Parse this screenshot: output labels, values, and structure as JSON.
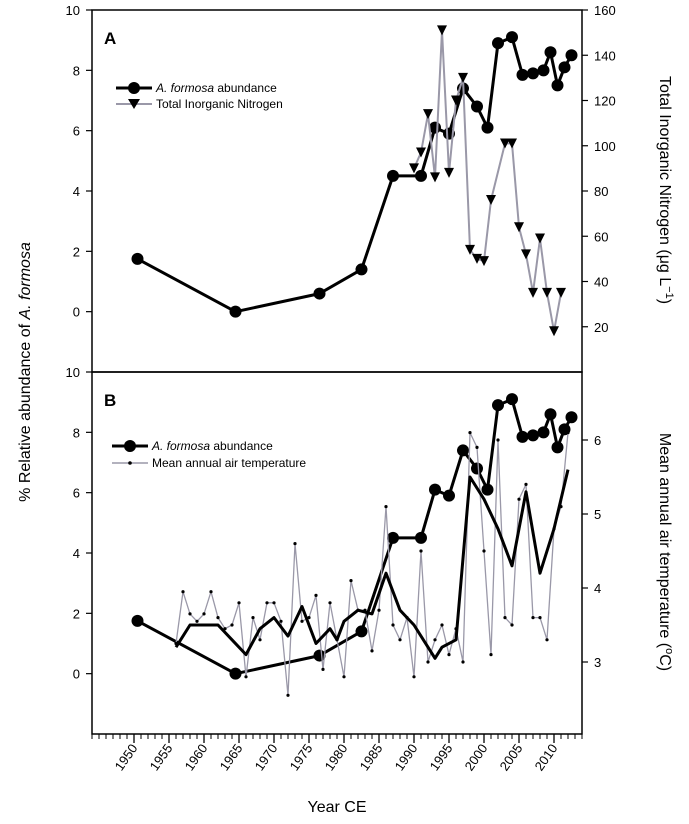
{
  "figure": {
    "left_ylabel": "% Relative abundance of A. formosa",
    "xlabel": "Year CE"
  },
  "chart_data": [
    {
      "panel": "A",
      "type": "line",
      "xlim": [
        1944,
        2014
      ],
      "x_ticks": [
        1950,
        1955,
        1960,
        1965,
        1970,
        1975,
        1980,
        1985,
        1990,
        1995,
        2000,
        2005,
        2010
      ],
      "left_axis": {
        "ylim": [
          -2,
          10
        ],
        "ticks": [
          0,
          2,
          4,
          6,
          8,
          10
        ]
      },
      "right_axis": {
        "label": "Total Inorganic Nitrogen (μg L⁻¹)",
        "ylim": [
          0,
          160
        ],
        "ticks": [
          20,
          40,
          60,
          80,
          100,
          120,
          140,
          160
        ]
      },
      "legend": {
        "placement": "top-left"
      },
      "series": [
        {
          "name": "A. formosa abundance",
          "axis": "left",
          "color": "#000000",
          "marker": "circle",
          "x": [
            1950.5,
            1964.5,
            1976.5,
            1982.5,
            1987,
            1991,
            1993,
            1995,
            1997,
            1999,
            2000.5,
            2002,
            2004,
            2005.5,
            2007,
            2008.5,
            2009.5,
            2010.5,
            2011.5,
            2012.5
          ],
          "y": [
            1.75,
            0.0,
            0.6,
            1.4,
            4.5,
            4.5,
            6.1,
            5.9,
            7.4,
            6.8,
            6.1,
            8.9,
            9.1,
            7.85,
            7.9,
            8.0,
            8.6,
            7.5,
            8.1,
            8.5
          ]
        },
        {
          "name": "Total Inorganic Nitrogen",
          "axis": "right",
          "color": "#9a98a8",
          "marker": "triangle-down",
          "x": [
            1990,
            1991,
            1992,
            1993,
            1994,
            1995,
            1996,
            1997,
            1998,
            1999,
            2000,
            2001,
            2003,
            2004,
            2005,
            2006,
            2007,
            2008,
            2009,
            2010,
            2011
          ],
          "y": [
            90,
            97,
            114,
            86,
            151,
            88,
            120,
            130,
            54,
            50,
            49,
            76,
            101,
            101,
            64,
            52,
            35,
            59,
            35,
            18,
            35
          ]
        }
      ]
    },
    {
      "panel": "B",
      "type": "line",
      "xlim": [
        1944,
        2014
      ],
      "x_ticks": [
        1950,
        1955,
        1960,
        1965,
        1970,
        1975,
        1980,
        1985,
        1990,
        1995,
        2000,
        2005,
        2010
      ],
      "left_axis": {
        "ylim": [
          -2,
          10
        ],
        "ticks": [
          0,
          2,
          4,
          6,
          8,
          10
        ]
      },
      "right_axis": {
        "label": "Mean annual air temperature (°C)",
        "ticks": [
          3,
          4,
          5,
          6
        ]
      },
      "legend": {
        "placement": "top-left"
      },
      "series": [
        {
          "name": "A. formosa abundance",
          "axis": "left",
          "color": "#000000",
          "marker": "circle",
          "x": [
            1950.5,
            1964.5,
            1976.5,
            1982.5,
            1987,
            1991,
            1993,
            1995,
            1997,
            1999,
            2000.5,
            2002,
            2004,
            2005.5,
            2007,
            2008.5,
            2009.5,
            2010.5,
            2011.5,
            2012.5
          ],
          "y": [
            1.75,
            0.0,
            0.6,
            1.4,
            4.5,
            4.5,
            6.1,
            5.9,
            7.4,
            6.8,
            6.1,
            8.9,
            9.1,
            7.85,
            7.9,
            8.0,
            8.6,
            7.5,
            8.1,
            8.5
          ]
        },
        {
          "name": "Mean annual air temperature",
          "axis": "right",
          "color": "#9a98a8",
          "marker": "dot",
          "x": [
            1956,
            1957,
            1958,
            1959,
            1960,
            1961,
            1962,
            1963,
            1964,
            1965,
            1966,
            1967,
            1968,
            1969,
            1970,
            1971,
            1972,
            1973,
            1974,
            1975,
            1976,
            1977,
            1978,
            1979,
            1980,
            1981,
            1982,
            1983,
            1984,
            1985,
            1986,
            1987,
            1988,
            1989,
            1990,
            1991,
            1992,
            1993,
            1994,
            1995,
            1996,
            1997,
            1998,
            1999,
            2000,
            2001,
            2002,
            2003,
            2004,
            2005,
            2006,
            2007,
            2008,
            2009,
            2010,
            2011,
            2012
          ],
          "y": [
            3.25,
            3.95,
            3.65,
            3.55,
            3.65,
            3.95,
            3.6,
            3.45,
            3.5,
            3.8,
            2.8,
            3.6,
            3.3,
            3.8,
            3.8,
            3.55,
            2.55,
            4.6,
            3.55,
            3.6,
            3.9,
            2.9,
            3.8,
            3.3,
            2.8,
            4.1,
            3.7,
            3.7,
            3.15,
            3.7,
            5.1,
            3.5,
            3.3,
            3.6,
            2.8,
            4.5,
            3.0,
            3.3,
            3.5,
            3.1,
            3.45,
            3.0,
            6.1,
            5.9,
            4.5,
            3.1,
            6.0,
            3.6,
            3.5,
            5.2,
            5.4,
            3.6,
            3.6,
            3.3,
            4.8,
            5.1,
            6.1
          ]
        },
        {
          "name": "",
          "axis": "right",
          "color": "#000000",
          "marker": "none",
          "x": [
            1956,
            1958,
            1960,
            1962,
            1964,
            1966,
            1968,
            1970,
            1972,
            1974,
            1976,
            1978,
            1979,
            1980,
            1982,
            1984,
            1986,
            1988,
            1989,
            1990,
            1992,
            1993,
            1994,
            1996,
            1998,
            2000,
            2002,
            2004,
            2006,
            2008,
            2010,
            2012
          ],
          "y": [
            3.2,
            3.5,
            3.5,
            3.5,
            3.3,
            3.1,
            3.45,
            3.6,
            3.35,
            3.75,
            3.25,
            3.45,
            3.3,
            3.55,
            3.7,
            3.65,
            4.2,
            3.7,
            3.6,
            3.5,
            3.2,
            3.05,
            3.2,
            3.3,
            5.5,
            5.2,
            4.8,
            4.3,
            5.3,
            4.2,
            4.8,
            5.6
          ]
        }
      ]
    }
  ],
  "legend_a": {
    "item1_italic": "A. formosa",
    "item1_rest": " abundance",
    "item2": "Total Inorganic Nitrogen"
  },
  "legend_b": {
    "item1_italic": "A. formosa",
    "item1_rest": " abundance",
    "item2": "Mean annual air temperature"
  },
  "left_label_parts": {
    "pre": "% Relative abundance of ",
    "italic": "A. formosa"
  },
  "right_label_a_parts": {
    "pre": "Total Inorganic Nitrogen (μg L",
    "sup": "−1",
    "post": ")"
  },
  "right_label_b_parts": {
    "pre": "Mean annual air temperature (",
    "sup": "o",
    "post": "C)"
  },
  "panel_labels": [
    "A",
    "B"
  ]
}
